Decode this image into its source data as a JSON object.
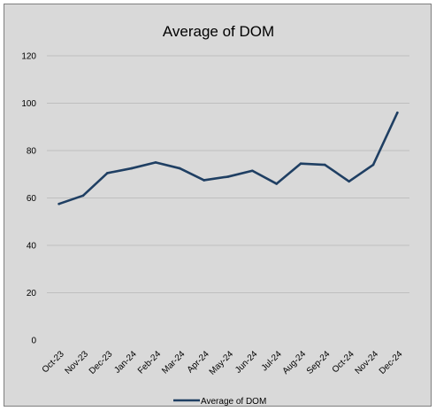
{
  "chart_data": {
    "type": "line",
    "title": "Average of DOM",
    "xlabel": "",
    "ylabel": "",
    "categories": [
      "Oct-23",
      "Nov-23",
      "Dec-23",
      "Jan-24",
      "Feb-24",
      "Mar-24",
      "Apr-24",
      "May-24",
      "Jun-24",
      "Jul-24",
      "Aug-24",
      "Sep-24",
      "Oct-24",
      "Nov-24",
      "Dec-24"
    ],
    "series": [
      {
        "name": "Average of DOM",
        "color": "#1f3f63",
        "values": [
          57.5,
          61,
          70.5,
          72.5,
          75,
          72.5,
          67.5,
          69,
          71.5,
          66,
          74.5,
          74,
          67,
          74,
          96
        ]
      }
    ],
    "ylim": [
      0,
      120
    ],
    "yticks": [
      0,
      20,
      40,
      60,
      80,
      100,
      120
    ],
    "grid": true,
    "legend_position": "bottom"
  }
}
